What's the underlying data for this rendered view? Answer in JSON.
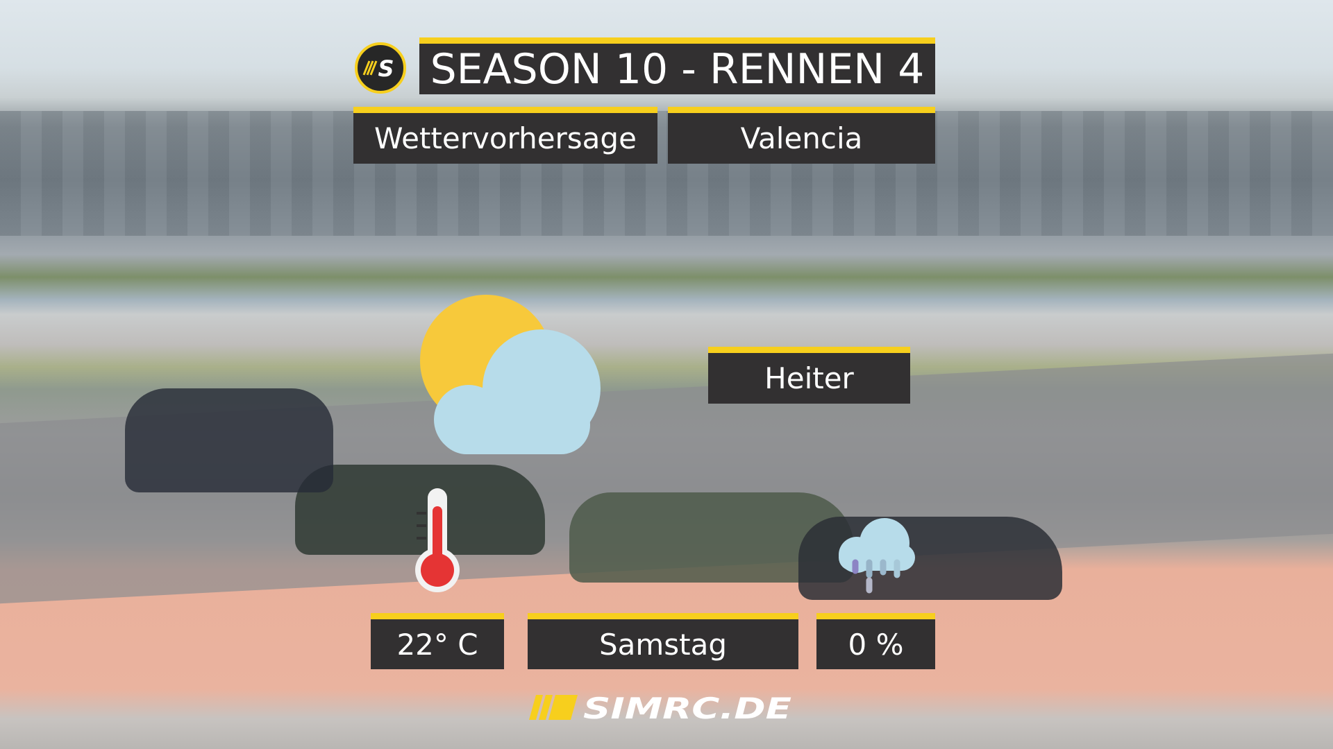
{
  "header": {
    "title": "SEASON 10 - RENNEN 4",
    "subtitle": "Wettervorhersage",
    "location": "Valencia"
  },
  "forecast": {
    "condition": "Heiter",
    "temperature": "22° C",
    "day": "Samstag",
    "precipitation": "0 %"
  },
  "icons": {
    "weather": "sun-cloud-icon",
    "temperature": "thermometer-icon",
    "precipitation": "rain-cloud-icon"
  },
  "brand": {
    "logo_text": "SIMRC.DE",
    "accent": "#f7cf1d",
    "panel": "#323031"
  }
}
